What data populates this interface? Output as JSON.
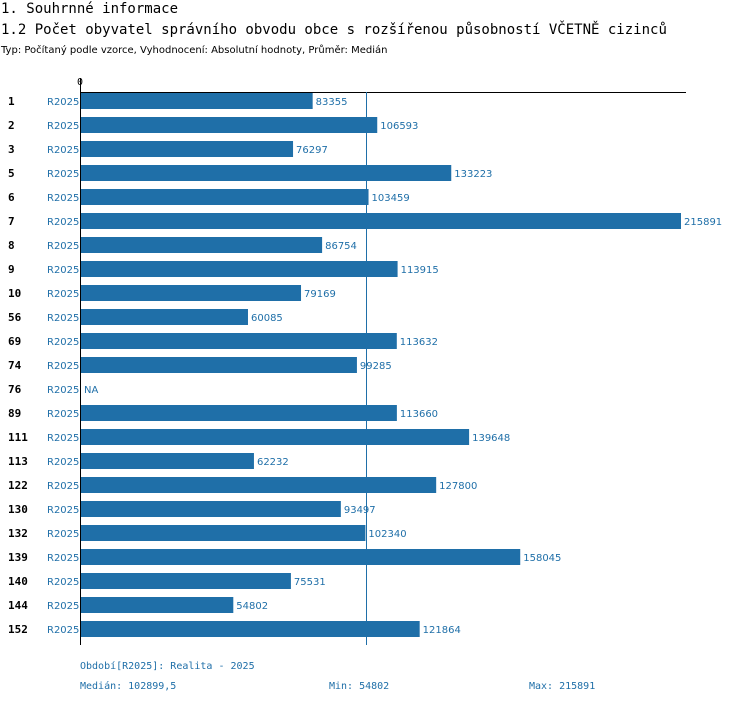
{
  "header": {
    "title": "1. Souhrnné informace",
    "subtitle": "1.2 Počet obyvatel správního obvodu obce s rozšířenou působností VČETNĚ cizinců",
    "info": "Typ: Počítaný podle vzorce, Vyhodnocení: Absolutní hodnoty, Průměr: Medián"
  },
  "footer": {
    "period": "Období[R2025]: Realita - 2025",
    "median": "Medián: 102899,5",
    "min": "Min: 54802",
    "max": "Max: 215891"
  },
  "colors": {
    "bar": "#1f6fa8",
    "axis": "#000000",
    "text": "#1f6fa8"
  },
  "chart_data": {
    "type": "bar",
    "orientation": "horizontal",
    "title": "1.2 Počet obyvatel správního obvodu obce s rozšířenou působností VČETNĚ cizinců",
    "x_tick_label": "0",
    "xlim": [
      0,
      215891
    ],
    "median": 102899.5,
    "categories": [
      "1",
      "2",
      "3",
      "5",
      "6",
      "7",
      "8",
      "9",
      "10",
      "56",
      "69",
      "74",
      "76",
      "89",
      "111",
      "113",
      "122",
      "130",
      "132",
      "139",
      "140",
      "144",
      "152"
    ],
    "period": "R2025",
    "series": [
      {
        "name": "R2025",
        "values": [
          83355,
          106593,
          76297,
          133223,
          103459,
          215891,
          86754,
          113915,
          79169,
          60085,
          113632,
          99285,
          null,
          113660,
          139648,
          62232,
          127800,
          93497,
          102340,
          158045,
          75531,
          54802,
          121864
        ],
        "labels": [
          "83355",
          "106593",
          "76297",
          "133223",
          "103459",
          "215891",
          "86754",
          "113915",
          "79169",
          "60085",
          "113632",
          "99285",
          "NA",
          "113660",
          "139648",
          "62232",
          "127800",
          "93497",
          "102340",
          "158045",
          "75531",
          "54802",
          "121864"
        ]
      }
    ]
  }
}
